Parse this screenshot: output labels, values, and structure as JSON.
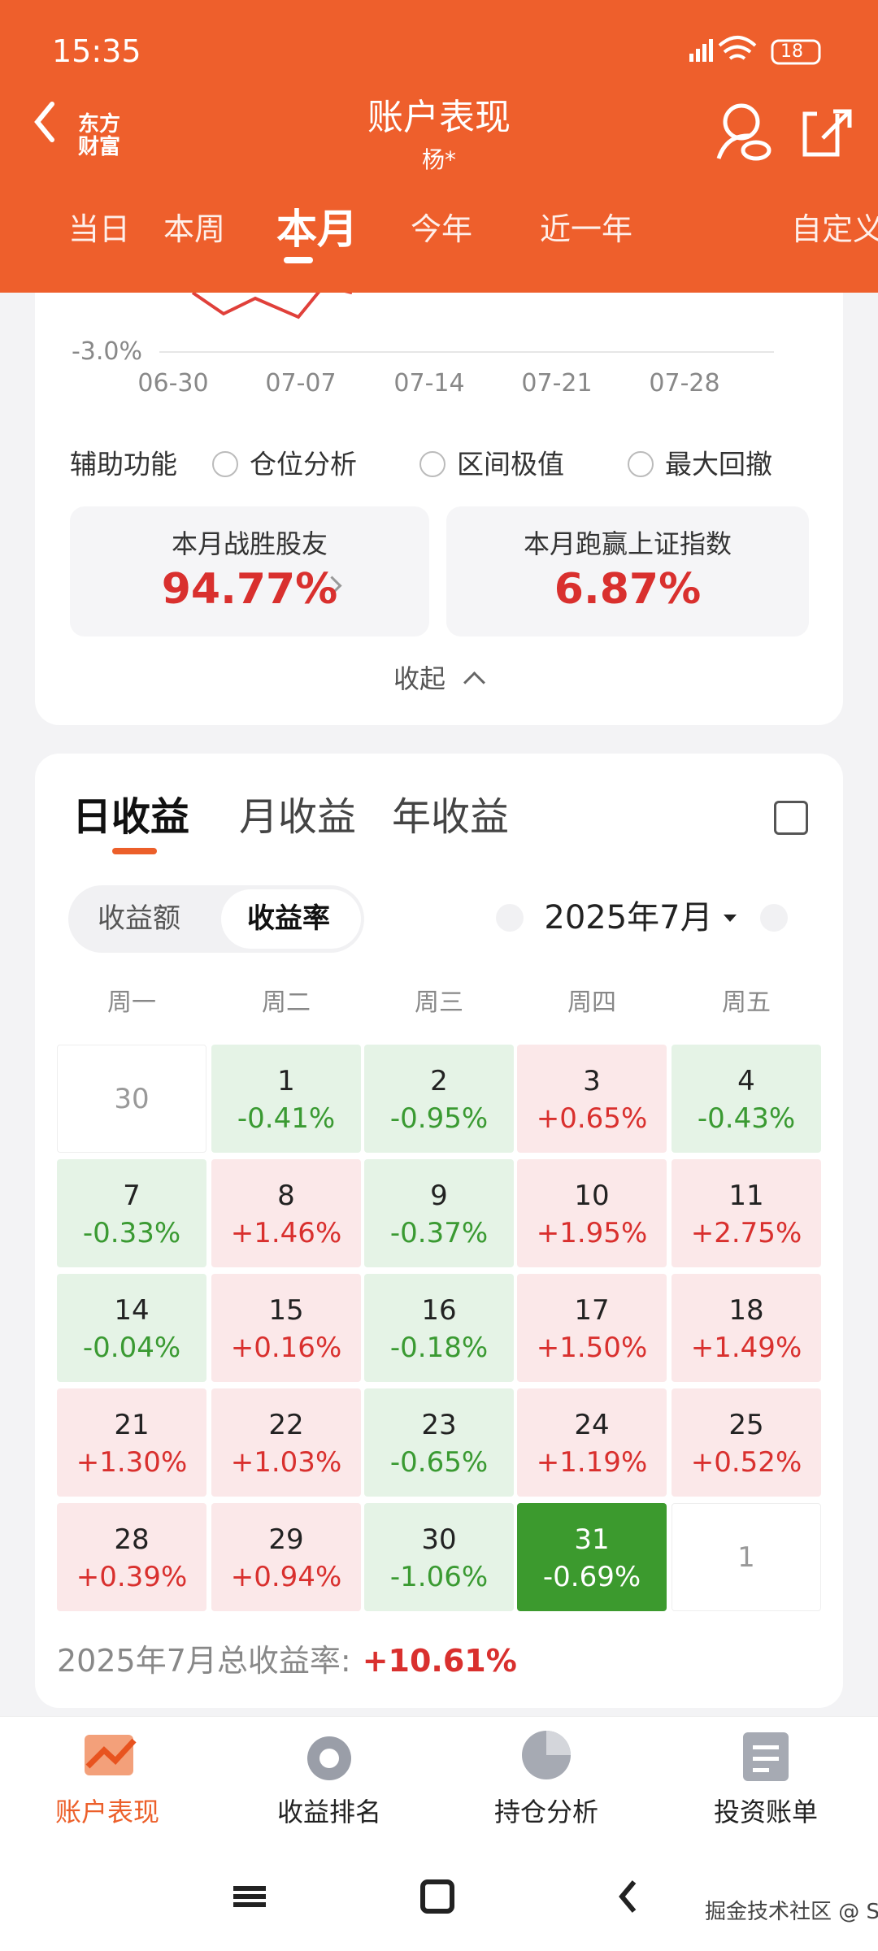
{
  "status_bar": {
    "time": "15:35",
    "battery": "18"
  },
  "header": {
    "logo": [
      "东方",
      "财富"
    ],
    "title": "账户表现",
    "subtitle": "杨*",
    "tabs": [
      "当日",
      "本周",
      "本月",
      "今年",
      "近一年",
      "自定义区间"
    ],
    "active_tab": 2
  },
  "trend_chart": {
    "y_label": "-3.0%",
    "x_labels": [
      "06-30",
      "07-07",
      "07-14",
      "07-21",
      "07-28"
    ]
  },
  "aux": {
    "label": "辅助功能",
    "options": [
      "仓位分析",
      "区间极值",
      "最大回撤"
    ]
  },
  "stats": [
    {
      "label": "本月战胜股友",
      "value": "94.77%"
    },
    {
      "label": "本月跑赢上证指数",
      "value": "6.87%"
    }
  ],
  "collapse": "收起",
  "returns": {
    "tabs": [
      "日收益",
      "月收益",
      "年收益"
    ],
    "active_tab": 0,
    "toggle": [
      "收益额",
      "收益率"
    ],
    "active_toggle": 1,
    "month": "2025年7月",
    "weekdays": [
      "周一",
      "周二",
      "周三",
      "周四",
      "周五"
    ],
    "days": [
      {
        "day": "30"
      },
      {
        "day": "1",
        "value": "-0.41%"
      },
      {
        "day": "2",
        "value": "-0.95%"
      },
      {
        "day": "3",
        "value": "+0.65%"
      },
      {
        "day": "4",
        "value": "-0.43%"
      },
      {
        "day": "7",
        "value": "-0.33%"
      },
      {
        "day": "8",
        "value": "+1.46%"
      },
      {
        "day": "9",
        "value": "-0.37%"
      },
      {
        "day": "10",
        "value": "+1.95%"
      },
      {
        "day": "11",
        "value": "+2.75%"
      },
      {
        "day": "14",
        "value": "-0.04%"
      },
      {
        "day": "15",
        "value": "+0.16%"
      },
      {
        "day": "16",
        "value": "-0.18%"
      },
      {
        "day": "17",
        "value": "+1.50%"
      },
      {
        "day": "18",
        "value": "+1.49%"
      },
      {
        "day": "21",
        "value": "+1.30%"
      },
      {
        "day": "22",
        "value": "+1.03%"
      },
      {
        "day": "23",
        "value": "-0.65%"
      },
      {
        "day": "24",
        "value": "+1.19%"
      },
      {
        "day": "25",
        "value": "+0.52%"
      },
      {
        "day": "28",
        "value": "+0.39%"
      },
      {
        "day": "29",
        "value": "+0.94%"
      },
      {
        "day": "30",
        "value": "-1.06%"
      },
      {
        "day": "31",
        "value": "-0.69%",
        "selected": true
      },
      {
        "day": "1"
      }
    ],
    "total_label": "2025年7月总收益率:",
    "total_value": "+10.61%"
  },
  "bottom_nav": {
    "items": [
      "账户表现",
      "收益排名",
      "持仓分析",
      "投资账单"
    ],
    "active": 0
  },
  "watermark": "掘金技术社区 @ SweetMemory"
}
